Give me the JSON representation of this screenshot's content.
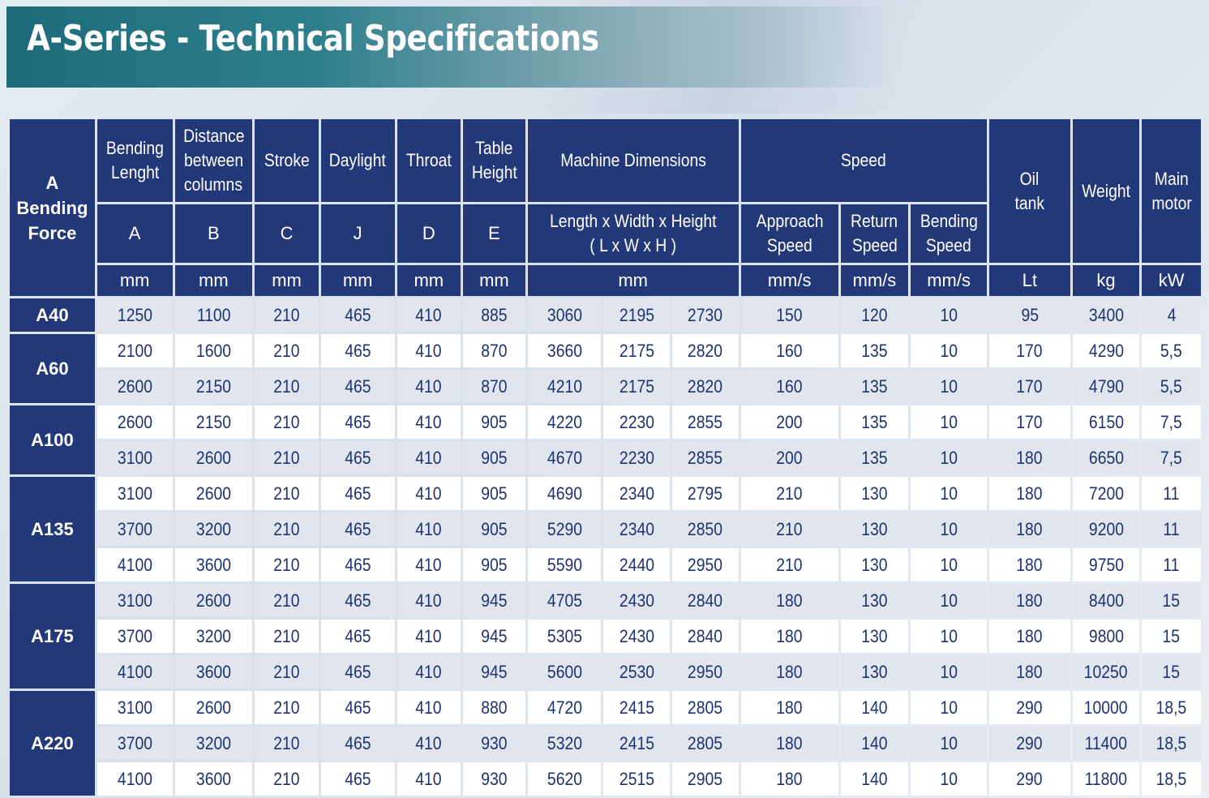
{
  "title": "A-Series - Technical Specifications",
  "header": {
    "force": [
      "A",
      "Bending",
      "Force"
    ],
    "bending_length": [
      "Bending",
      "Lenght"
    ],
    "distance": [
      "Distance",
      "between",
      "columns"
    ],
    "stroke": "Stroke",
    "daylight": "Daylight",
    "throat": "Throat",
    "table_height": [
      "Table",
      "Height"
    ],
    "machine_dimensions": "Machine Dimensions",
    "speed": "Speed",
    "oil_tank": [
      "Oil",
      "tank"
    ],
    "weight": "Weight",
    "main_motor": [
      "Main",
      "motor"
    ],
    "letters": [
      "A",
      "B",
      "C",
      "J",
      "D",
      "E"
    ],
    "dims_sub": [
      "Length x Width x Height",
      "( L x W x H )"
    ],
    "approach_speed": [
      "Approach",
      "Speed"
    ],
    "return_speed": [
      "Return",
      "Speed"
    ],
    "bending_speed": [
      "Bending",
      "Speed"
    ],
    "units": [
      "mm",
      "mm",
      "mm",
      "mm",
      "mm",
      "mm",
      "mm",
      "mm/s",
      "mm/s",
      "mm/s",
      "Lt",
      "kg",
      "kW"
    ]
  },
  "rows": [
    [
      "A40",
      "1250",
      "1100",
      "210",
      "465",
      "410",
      "885",
      "3060",
      "2195",
      "2730",
      "150",
      "120",
      "10",
      "95",
      "3400",
      "4"
    ],
    [
      "A60",
      "2100",
      "1600",
      "210",
      "465",
      "410",
      "870",
      "3660",
      "2175",
      "2820",
      "160",
      "135",
      "10",
      "170",
      "4290",
      "5,5"
    ],
    [
      "",
      "2600",
      "2150",
      "210",
      "465",
      "410",
      "870",
      "4210",
      "2175",
      "2820",
      "160",
      "135",
      "10",
      "170",
      "4790",
      "5,5"
    ],
    [
      "A100",
      "2600",
      "2150",
      "210",
      "465",
      "410",
      "905",
      "4220",
      "2230",
      "2855",
      "200",
      "135",
      "10",
      "170",
      "6150",
      "7,5"
    ],
    [
      "",
      "3100",
      "2600",
      "210",
      "465",
      "410",
      "905",
      "4670",
      "2230",
      "2855",
      "200",
      "135",
      "10",
      "180",
      "6650",
      "7,5"
    ],
    [
      "A135",
      "3100",
      "2600",
      "210",
      "465",
      "410",
      "905",
      "4690",
      "2340",
      "2795",
      "210",
      "130",
      "10",
      "180",
      "7200",
      "11"
    ],
    [
      "",
      "3700",
      "3200",
      "210",
      "465",
      "410",
      "905",
      "5290",
      "2340",
      "2850",
      "210",
      "130",
      "10",
      "180",
      "9200",
      "11"
    ],
    [
      "",
      "4100",
      "3600",
      "210",
      "465",
      "410",
      "905",
      "5590",
      "2440",
      "2950",
      "210",
      "130",
      "10",
      "180",
      "9750",
      "11"
    ],
    [
      "A175",
      "3100",
      "2600",
      "210",
      "465",
      "410",
      "945",
      "4705",
      "2430",
      "2840",
      "180",
      "130",
      "10",
      "180",
      "8400",
      "15"
    ],
    [
      "",
      "3700",
      "3200",
      "210",
      "465",
      "410",
      "945",
      "5305",
      "2430",
      "2840",
      "180",
      "130",
      "10",
      "180",
      "9800",
      "15"
    ],
    [
      "",
      "4100",
      "3600",
      "210",
      "465",
      "410",
      "945",
      "5600",
      "2530",
      "2950",
      "180",
      "130",
      "10",
      "180",
      "10250",
      "15"
    ],
    [
      "A220",
      "3100",
      "2600",
      "210",
      "465",
      "410",
      "880",
      "4720",
      "2415",
      "2805",
      "180",
      "140",
      "10",
      "290",
      "10000",
      "18,5"
    ],
    [
      "",
      "3700",
      "3200",
      "210",
      "465",
      "410",
      "930",
      "5320",
      "2415",
      "2805",
      "180",
      "140",
      "10",
      "290",
      "11400",
      "18,5"
    ],
    [
      "",
      "4100",
      "3600",
      "210",
      "465",
      "410",
      "930",
      "5620",
      "2515",
      "2905",
      "180",
      "140",
      "10",
      "290",
      "11800",
      "18,5"
    ]
  ]
}
